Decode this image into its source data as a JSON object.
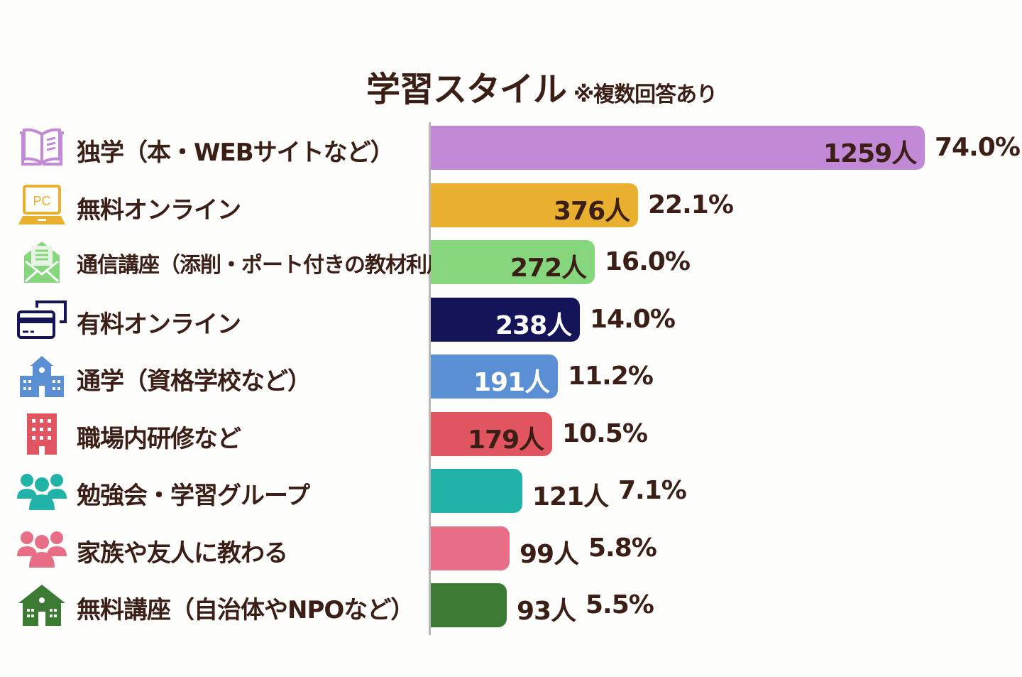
{
  "chart_data": {
    "type": "bar",
    "orientation": "horizontal",
    "title": "学習スタイル",
    "subtitle": "※複数回答あり",
    "categories": [
      "独学（本・WEBサイトなど）",
      "無料オンライン",
      "通信講座（添削・ポート付きの教材利用）",
      "有料オンライン",
      "通学（資格学校など）",
      "職場内研修など",
      "勉強会・学習グループ",
      "家族や友人に教わる",
      "無料講座（自治体やNPOなど）"
    ],
    "values": [
      1259,
      376,
      272,
      238,
      191,
      179,
      121,
      99,
      93
    ],
    "percents": [
      74.0,
      22.1,
      16.0,
      14.0,
      11.2,
      10.5,
      7.1,
      5.8,
      5.5
    ],
    "count_labels": [
      "1259人",
      "376人",
      "272人",
      "238人",
      "191人",
      "179人",
      "121人",
      "99人",
      "93人"
    ],
    "percent_labels": [
      "74.0%",
      "22.1%",
      "16.0%",
      "14.0%",
      "11.2%",
      "10.5%",
      "7.1%",
      "5.8%",
      "5.5%"
    ],
    "colors": [
      "#c28ad6",
      "#e8b02e",
      "#86d67e",
      "#141458",
      "#5b8fd4",
      "#e0555f",
      "#22b3a8",
      "#e86e88",
      "#3c7a34"
    ],
    "label_colors": [
      "#3b1f17",
      "#3b1f17",
      "#3b1f17",
      "#ffffff",
      "#ffffff",
      "#3b1f17",
      "#3b1f17",
      "#3b1f17",
      "#3b1f17"
    ],
    "icons": [
      "book-icon",
      "laptop-pc-icon",
      "envelope-letter-icon",
      "credit-card-screen-icon",
      "school-building-icon",
      "office-building-icon",
      "group-icon",
      "family-icon",
      "house-icon"
    ],
    "icon_text": "PC",
    "xlabel": "",
    "ylabel": "",
    "grid": false,
    "legend": "none"
  }
}
